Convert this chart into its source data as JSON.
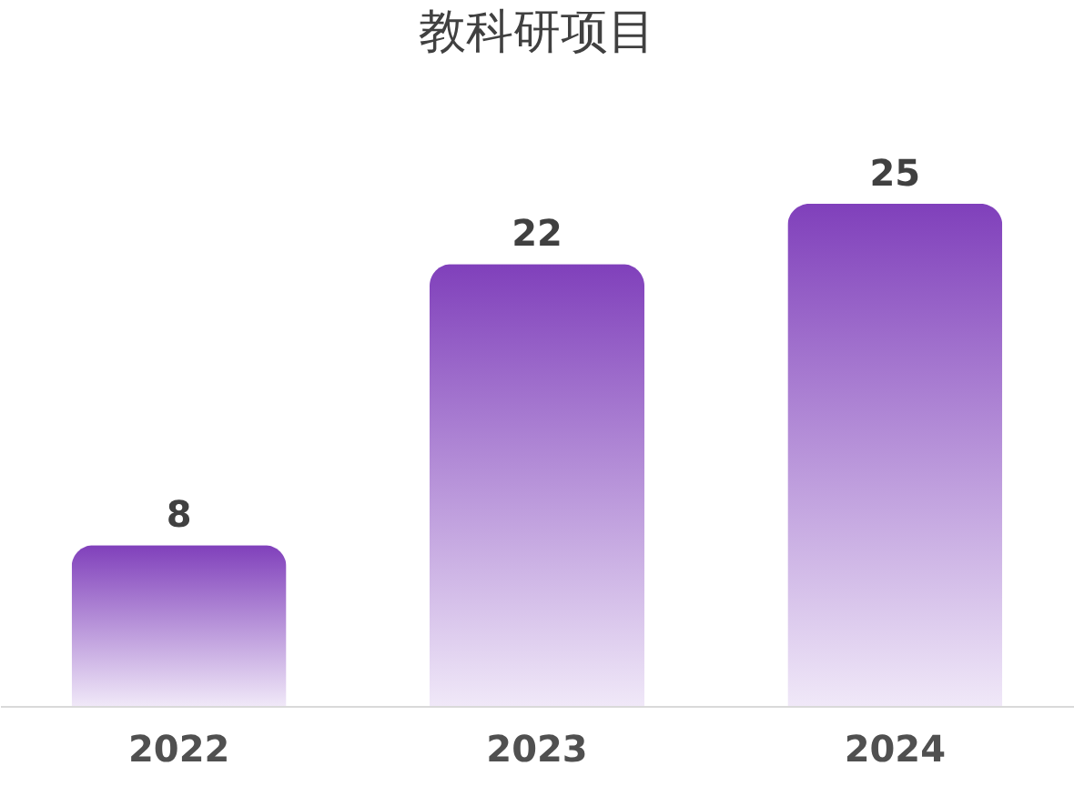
{
  "chart_data": {
    "type": "bar",
    "title": "教科研项目",
    "categories": [
      "2022",
      "2023",
      "2024"
    ],
    "series": [
      {
        "color": "#8040bb",
        "values": [
          8,
          22,
          25
        ]
      }
    ],
    "data_labels": true
  }
}
